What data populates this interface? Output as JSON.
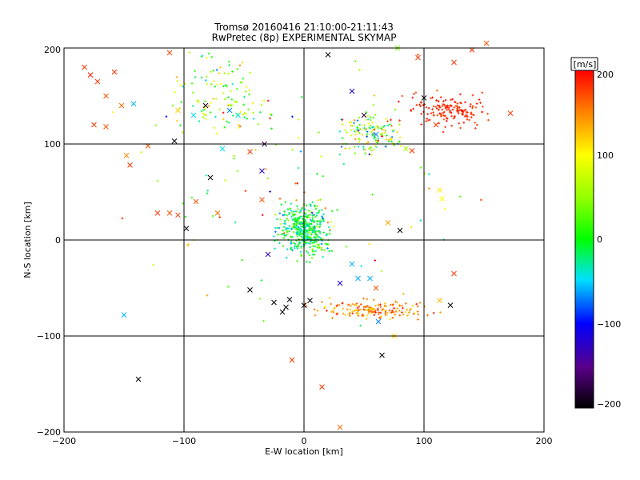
{
  "chart_data": {
    "type": "scatter",
    "title": "Tromsø 20160416 21:10:00-21:11:43",
    "subtitle": "RwPretec (8p) EXPERIMENTAL SKYMAP",
    "xlabel": "E-W location [km]",
    "ylabel": "N-S location [km]",
    "xlim": [
      -200,
      200
    ],
    "ylim": [
      -200,
      200
    ],
    "x_ticks": [
      "−200",
      "−100",
      "0",
      "100",
      "200"
    ],
    "y_ticks": [
      "−200",
      "−100",
      "0",
      "100",
      "200"
    ],
    "grid": true,
    "colorbar": {
      "label": "[m/s]",
      "range": [
        -200,
        200
      ],
      "ticks": [
        "200",
        "100",
        "0",
        "−100",
        "−200"
      ],
      "colormap": "black-purple-blue-cyan-green-yellow-red"
    },
    "cross_markers": [
      [
        -183,
        180,
        180
      ],
      [
        -178,
        172,
        190
      ],
      [
        -172,
        165,
        180
      ],
      [
        -165,
        150,
        170
      ],
      [
        -158,
        175,
        185
      ],
      [
        -152,
        140,
        160
      ],
      [
        -175,
        120,
        180
      ],
      [
        -165,
        118,
        170
      ],
      [
        -148,
        88,
        150
      ],
      [
        -145,
        78,
        180
      ],
      [
        -130,
        98,
        170
      ],
      [
        -122,
        28,
        180
      ],
      [
        -112,
        28,
        170
      ],
      [
        -105,
        26,
        180
      ],
      [
        -112,
        195,
        175
      ],
      [
        -105,
        135,
        120
      ],
      [
        -90,
        40,
        170
      ],
      [
        -82,
        140,
        -190
      ],
      [
        -92,
        130,
        -50
      ],
      [
        -108,
        103,
        -195
      ],
      [
        -98,
        12,
        -195
      ],
      [
        -78,
        65,
        -200
      ],
      [
        -72,
        28,
        160
      ],
      [
        -68,
        95,
        -50
      ],
      [
        -62,
        135,
        -70
      ],
      [
        -55,
        130,
        -40
      ],
      [
        -45,
        92,
        180
      ],
      [
        -35,
        72,
        -120
      ],
      [
        -35,
        42,
        170
      ],
      [
        -33,
        100,
        -180
      ],
      [
        -142,
        142,
        -60
      ],
      [
        -150,
        -78,
        -60
      ],
      [
        -138,
        -145,
        -200
      ],
      [
        -45,
        -52,
        -200
      ],
      [
        -30,
        -15,
        -130
      ],
      [
        -25,
        -65,
        -200
      ],
      [
        -18,
        -75,
        -195
      ],
      [
        -15,
        -70,
        -200
      ],
      [
        -12,
        -62,
        -195
      ],
      [
        -10,
        -125,
        180
      ],
      [
        0,
        -68,
        -200
      ],
      [
        5,
        -63,
        -200
      ],
      [
        15,
        -153,
        180
      ],
      [
        20,
        193,
        -200
      ],
      [
        40,
        155,
        -120
      ],
      [
        30,
        -195,
        160
      ],
      [
        30,
        -45,
        -110
      ],
      [
        45,
        -40,
        -60
      ],
      [
        40,
        -25,
        -60
      ],
      [
        55,
        -40,
        -60
      ],
      [
        60,
        -50,
        170
      ],
      [
        62,
        -85,
        -70
      ],
      [
        65,
        -120,
        -200
      ],
      [
        75,
        -100,
        120
      ],
      [
        78,
        200,
        40
      ],
      [
        85,
        95,
        60
      ],
      [
        90,
        93,
        180
      ],
      [
        80,
        10,
        -200
      ],
      [
        70,
        18,
        140
      ],
      [
        95,
        190,
        180
      ],
      [
        100,
        148,
        -195
      ],
      [
        110,
        120,
        180
      ],
      [
        113,
        52,
        110
      ],
      [
        115,
        43,
        100
      ],
      [
        113,
        -63,
        130
      ],
      [
        122,
        -68,
        -200
      ],
      [
        125,
        -35,
        180
      ],
      [
        125,
        185,
        180
      ],
      [
        140,
        198,
        180
      ],
      [
        152,
        205,
        170
      ],
      [
        172,
        132,
        180
      ],
      [
        60,
        110,
        -70
      ],
      [
        50,
        130,
        -180
      ]
    ]
  }
}
